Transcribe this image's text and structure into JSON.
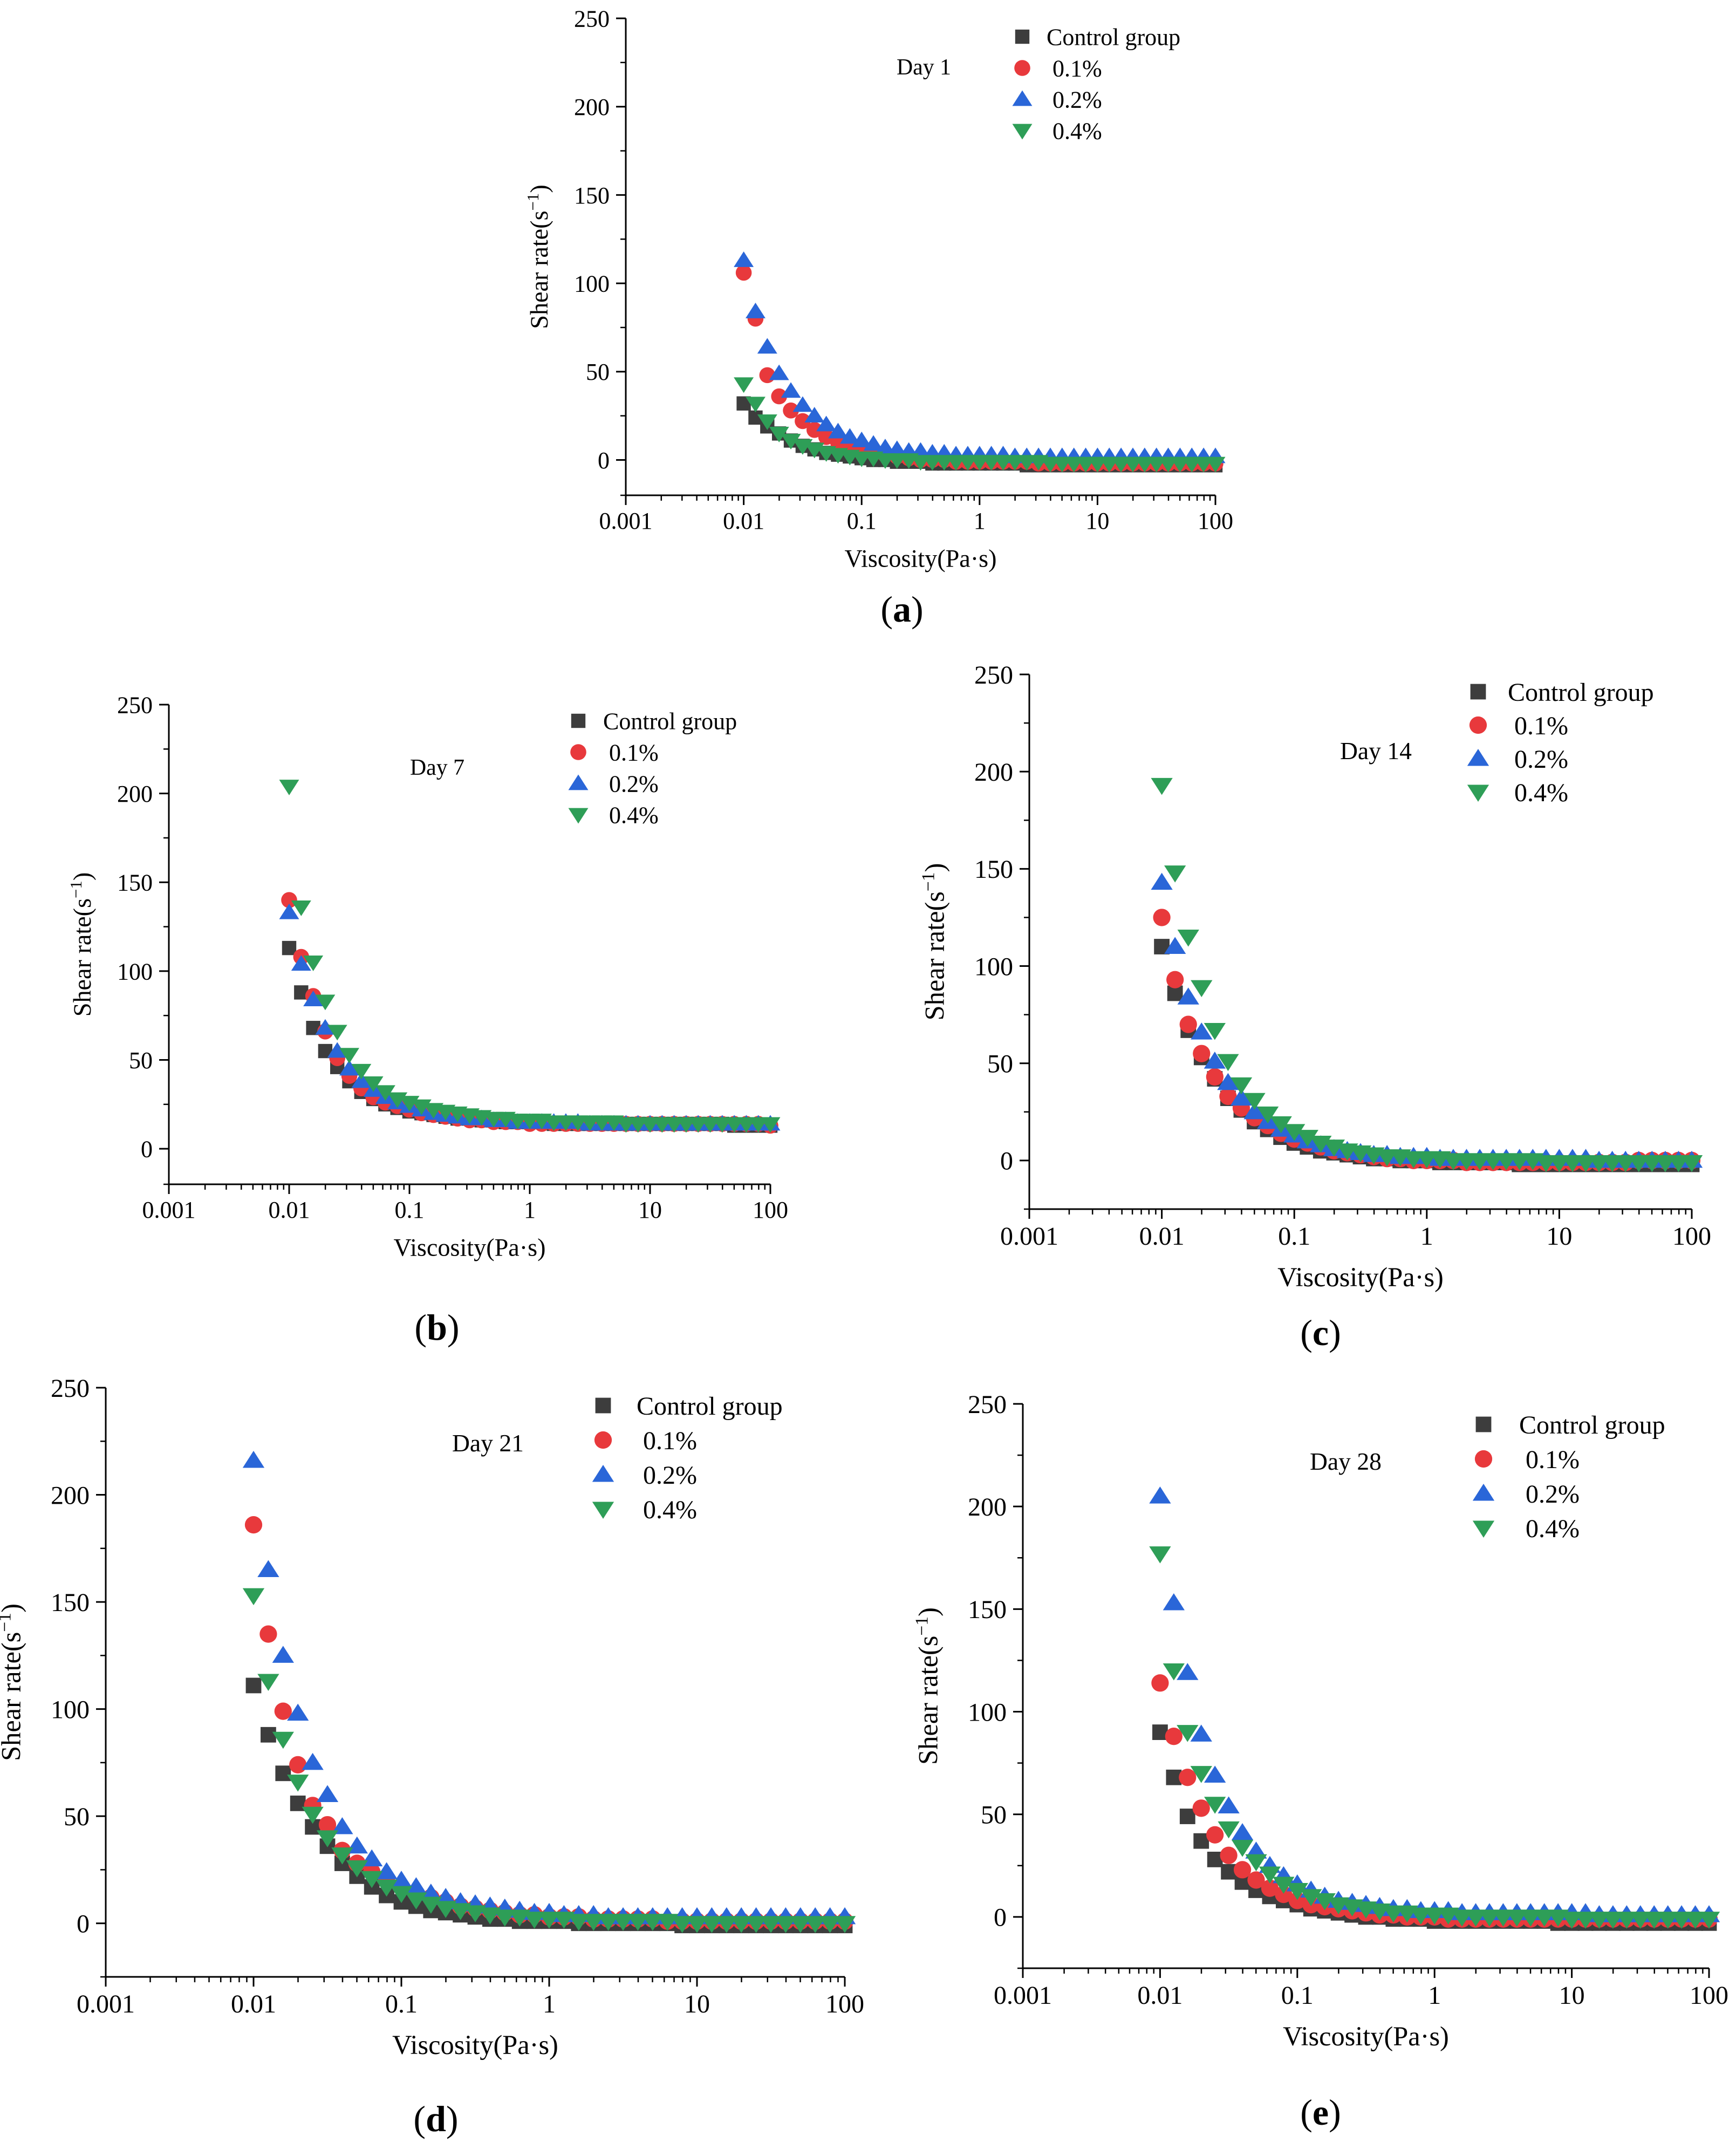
{
  "figure": {
    "x_axis_label": "Viscosity(Pa·s)",
    "y_axis_label_base": "Shear rate(s",
    "y_axis_label_sup": "−1",
    "y_axis_label_end": ")"
  },
  "series_styles": [
    {
      "name": "Control group",
      "marker": "square",
      "color": "#3d3d3d"
    },
    {
      "name": "0.1%",
      "marker": "circle",
      "color": "#e8393c"
    },
    {
      "name": "0.2%",
      "marker": "triangle-up",
      "color": "#2a66d8"
    },
    {
      "name": "0.4%",
      "marker": "triangle-down",
      "color": "#2e9e57"
    }
  ],
  "chart_data": [
    {
      "type": "scatter",
      "caption": "a",
      "annotation": "Day 1",
      "xlabel": "Viscosity(Pa·s)",
      "ylabel": "Shear rate(s⁻¹)",
      "xscale": "log",
      "xlim": [
        0.001,
        100
      ],
      "ylim": [
        -20,
        250
      ],
      "xticks": [
        "0.001",
        "0.01",
        "0.1",
        "1",
        "10",
        "100"
      ],
      "yticks": [
        "0",
        "50",
        "100",
        "150",
        "200",
        "250"
      ],
      "legend": "top-right",
      "series": [
        {
          "name": "Control group",
          "values": [
            32,
            24,
            19,
            15,
            11,
            8,
            6,
            4,
            3,
            2,
            1,
            0,
            0,
            -1,
            -1,
            -1,
            -2,
            -2,
            -2,
            -2,
            -2,
            -2,
            -2,
            -2,
            -3,
            -3,
            -3,
            -3,
            -3,
            -3,
            -3,
            -3,
            -3,
            -3,
            -3,
            -3,
            -3,
            -3,
            -3,
            -3,
            -3
          ]
        },
        {
          "name": "0.1%",
          "values": [
            106,
            80,
            48,
            36,
            28,
            22,
            17,
            13,
            10,
            8,
            6,
            4,
            3,
            2,
            1,
            0,
            0,
            0,
            -1,
            -1,
            -1,
            -1,
            -1,
            -1,
            -1,
            -2,
            -2,
            -2,
            -2,
            -2,
            -2,
            -2,
            -2,
            -2,
            -2,
            -2,
            -2,
            -2,
            -2,
            -2,
            -2
          ]
        },
        {
          "name": "0.2%",
          "values": [
            113,
            84,
            64,
            49,
            39,
            31,
            25,
            20,
            16,
            13,
            11,
            9,
            7,
            6,
            5,
            5,
            4,
            4,
            3,
            3,
            3,
            3,
            3,
            2,
            2,
            2,
            2,
            2,
            2,
            2,
            2,
            2,
            2,
            2,
            2,
            2,
            2,
            2,
            2,
            2,
            2
          ]
        },
        {
          "name": "0.4%",
          "values": [
            43,
            32,
            22,
            15,
            11,
            8,
            6,
            4,
            3,
            2,
            1,
            1,
            0,
            0,
            0,
            -1,
            -1,
            -1,
            -1,
            -1,
            -1,
            -1,
            -1,
            -1,
            -1,
            -1,
            -2,
            -2,
            -2,
            -2,
            -2,
            -2,
            -2,
            -2,
            -2,
            -2,
            -2,
            -2,
            -2,
            -2,
            -2
          ]
        }
      ]
    },
    {
      "type": "scatter",
      "caption": "b",
      "annotation": "Day 7",
      "xlabel": "Viscosity(Pa·s)",
      "ylabel": "Shear rate(s⁻¹)",
      "xscale": "log",
      "xlim": [
        0.001,
        100
      ],
      "ylim": [
        -20,
        250
      ],
      "xticks": [
        "0.001",
        "0.01",
        "0.1",
        "1",
        "10",
        "100"
      ],
      "yticks": [
        "0",
        "50",
        "100",
        "150",
        "200",
        "250"
      ],
      "legend": "top-right",
      "series": [
        {
          "name": "Control group",
          "values": [
            113,
            88,
            68,
            55,
            46,
            38,
            32,
            28,
            25,
            23,
            21,
            20,
            19,
            18,
            17,
            17,
            16,
            16,
            15,
            15,
            15,
            15,
            14,
            14,
            14,
            14,
            14,
            14,
            14,
            14,
            14,
            14,
            14,
            14,
            14,
            14,
            14,
            13,
            13,
            13,
            13
          ]
        },
        {
          "name": "0.1%",
          "values": [
            140,
            108,
            86,
            66,
            51,
            41,
            34,
            29,
            26,
            24,
            22,
            20,
            19,
            18,
            17,
            16,
            16,
            15,
            15,
            15,
            14,
            14,
            14,
            14,
            14,
            14,
            14,
            14,
            14,
            14,
            14,
            14,
            14,
            14,
            14,
            14,
            14,
            14,
            14,
            14,
            13
          ]
        },
        {
          "name": "0.2%",
          "values": [
            133,
            104,
            84,
            68,
            55,
            45,
            38,
            33,
            29,
            26,
            24,
            22,
            20,
            19,
            18,
            17,
            17,
            16,
            16,
            15,
            15,
            15,
            15,
            15,
            15,
            14,
            14,
            14,
            14,
            14,
            14,
            14,
            14,
            14,
            14,
            14,
            14,
            14,
            14,
            14,
            14
          ]
        },
        {
          "name": "0.4%",
          "values": [
            204,
            136,
            105,
            83,
            66,
            53,
            44,
            37,
            32,
            28,
            26,
            24,
            22,
            21,
            20,
            19,
            18,
            17,
            17,
            16,
            16,
            16,
            15,
            15,
            15,
            15,
            15,
            15,
            14,
            14,
            14,
            14,
            14,
            14,
            14,
            14,
            14,
            14,
            14,
            14,
            14
          ]
        }
      ]
    },
    {
      "type": "scatter",
      "caption": "c",
      "annotation": "Day 14",
      "xlabel": "Viscosity(Pa·s)",
      "ylabel": "Shear rate(s⁻¹)",
      "xscale": "log",
      "xlim": [
        0.001,
        100
      ],
      "ylim": [
        -25,
        250
      ],
      "xticks": [
        "0.001",
        "0.01",
        "0.1",
        "1",
        "10",
        "100"
      ],
      "yticks": [
        "0",
        "50",
        "100",
        "150",
        "200",
        "250"
      ],
      "legend": "top-right",
      "series": [
        {
          "name": "Control group",
          "values": [
            110,
            86,
            67,
            53,
            42,
            32,
            26,
            20,
            16,
            12,
            9,
            7,
            5,
            4,
            3,
            2,
            1,
            1,
            0,
            0,
            0,
            -1,
            -1,
            -1,
            -1,
            -1,
            -1,
            -2,
            -2,
            -2,
            -2,
            -2,
            -2,
            -2,
            -2,
            -2,
            -2,
            -2,
            -2,
            -2,
            -2
          ]
        },
        {
          "name": "0.1%",
          "values": [
            125,
            93,
            70,
            55,
            43,
            33,
            27,
            22,
            18,
            14,
            11,
            9,
            7,
            5,
            4,
            3,
            2,
            1,
            1,
            0,
            0,
            0,
            0,
            -1,
            -1,
            -1,
            -1,
            -1,
            -1,
            -1,
            -1,
            -1,
            -1,
            -1,
            -1,
            -1,
            0,
            0,
            0,
            0,
            0
          ]
        },
        {
          "name": "0.2%",
          "values": [
            143,
            110,
            84,
            66,
            51,
            40,
            32,
            25,
            20,
            16,
            13,
            10,
            8,
            6,
            5,
            4,
            3,
            3,
            2,
            2,
            2,
            1,
            1,
            1,
            1,
            1,
            1,
            1,
            1,
            1,
            1,
            1,
            1,
            0,
            0,
            0,
            0,
            0,
            0,
            0,
            0
          ]
        },
        {
          "name": "0.4%",
          "values": [
            193,
            148,
            115,
            89,
            67,
            51,
            39,
            31,
            24,
            19,
            15,
            12,
            9,
            7,
            5,
            4,
            3,
            2,
            2,
            1,
            1,
            1,
            0,
            0,
            0,
            0,
            0,
            0,
            0,
            -1,
            -1,
            -1,
            -1,
            -1,
            -1,
            -1,
            -1,
            -1,
            -1,
            -1,
            -1
          ]
        }
      ]
    },
    {
      "type": "scatter",
      "caption": "d",
      "annotation": "Day 21",
      "xlabel": "Viscosity(Pa·s)",
      "ylabel": "Shear rate(s⁻¹)",
      "xscale": "log",
      "xlim": [
        0.001,
        100
      ],
      "ylim": [
        -25,
        250
      ],
      "xticks": [
        "0.001",
        "0.01",
        "0.1",
        "1",
        "10",
        "100"
      ],
      "yticks": [
        "0",
        "50",
        "100",
        "150",
        "200",
        "250"
      ],
      "legend": "top-right",
      "series": [
        {
          "name": "Control group",
          "values": [
            111,
            88,
            70,
            56,
            45,
            36,
            28,
            22,
            17,
            13,
            10,
            8,
            6,
            5,
            4,
            3,
            2,
            2,
            1,
            1,
            1,
            1,
            0,
            0,
            0,
            0,
            0,
            0,
            0,
            -1,
            -1,
            -1,
            -1,
            -1,
            -1,
            -1,
            -1,
            -1,
            -1,
            -1,
            -1
          ]
        },
        {
          "name": "0.1%",
          "values": [
            186,
            135,
            99,
            74,
            55,
            46,
            34,
            28,
            24,
            20,
            17,
            14,
            12,
            10,
            8,
            7,
            6,
            5,
            4,
            4,
            3,
            3,
            3,
            2,
            2,
            2,
            2,
            2,
            1,
            1,
            1,
            1,
            1,
            1,
            1,
            1,
            1,
            1,
            1,
            1,
            1
          ]
        },
        {
          "name": "0.2%",
          "values": [
            216,
            165,
            125,
            98,
            75,
            60,
            45,
            36,
            30,
            24,
            20,
            17,
            14,
            12,
            10,
            9,
            8,
            7,
            6,
            5,
            5,
            4,
            4,
            4,
            3,
            3,
            3,
            3,
            3,
            3,
            3,
            3,
            3,
            3,
            3,
            3,
            3,
            3,
            3,
            3,
            3
          ]
        },
        {
          "name": "0.4%",
          "values": [
            153,
            113,
            86,
            66,
            51,
            40,
            32,
            26,
            21,
            17,
            14,
            11,
            9,
            7,
            6,
            5,
            4,
            3,
            3,
            2,
            2,
            2,
            1,
            1,
            1,
            1,
            1,
            1,
            1,
            0,
            0,
            0,
            0,
            0,
            0,
            0,
            0,
            0,
            0,
            0,
            0
          ]
        }
      ]
    },
    {
      "type": "scatter",
      "caption": "e",
      "annotation": "Day 28",
      "xlabel": "Viscosity(Pa·s)",
      "ylabel": "Shear rate(s⁻¹)",
      "xscale": "log",
      "xlim": [
        0.001,
        100
      ],
      "ylim": [
        -25,
        250
      ],
      "xticks": [
        "0.001",
        "0.01",
        "0.1",
        "1",
        "10",
        "100"
      ],
      "yticks": [
        "0",
        "50",
        "100",
        "150",
        "200",
        "250"
      ],
      "legend": "top-right",
      "series": [
        {
          "name": "Control group",
          "values": [
            90,
            68,
            49,
            37,
            28,
            22,
            17,
            13,
            10,
            8,
            6,
            4,
            3,
            2,
            1,
            0,
            0,
            -1,
            -1,
            -1,
            -2,
            -2,
            -2,
            -2,
            -2,
            -2,
            -2,
            -2,
            -2,
            -3,
            -3,
            -3,
            -3,
            -3,
            -3,
            -3,
            -3,
            -3,
            -3,
            -3,
            -3
          ]
        },
        {
          "name": "0.1%",
          "values": [
            114,
            88,
            68,
            53,
            40,
            30,
            23,
            18,
            14,
            11,
            8,
            6,
            5,
            4,
            3,
            2,
            1,
            1,
            0,
            0,
            0,
            -1,
            -1,
            -1,
            -1,
            -1,
            -1,
            -1,
            -1,
            -1,
            -1,
            -1,
            -1,
            -1,
            -1,
            -1,
            -1,
            -1,
            -1,
            -1,
            -1
          ]
        },
        {
          "name": "0.2%",
          "values": [
            205,
            153,
            119,
            89,
            69,
            54,
            41,
            32,
            25,
            20,
            16,
            13,
            10,
            8,
            7,
            6,
            5,
            4,
            4,
            3,
            3,
            3,
            2,
            2,
            2,
            2,
            2,
            2,
            2,
            2,
            2,
            2,
            1,
            1,
            1,
            1,
            1,
            1,
            1,
            1,
            1
          ]
        },
        {
          "name": "0.4%",
          "values": [
            177,
            120,
            90,
            70,
            55,
            43,
            34,
            27,
            21,
            16,
            13,
            10,
            8,
            6,
            5,
            4,
            3,
            2,
            2,
            1,
            1,
            1,
            0,
            0,
            0,
            0,
            0,
            0,
            0,
            0,
            -1,
            -1,
            -1,
            -1,
            -1,
            -1,
            -1,
            -1,
            -1,
            -1,
            -1
          ]
        }
      ]
    }
  ]
}
